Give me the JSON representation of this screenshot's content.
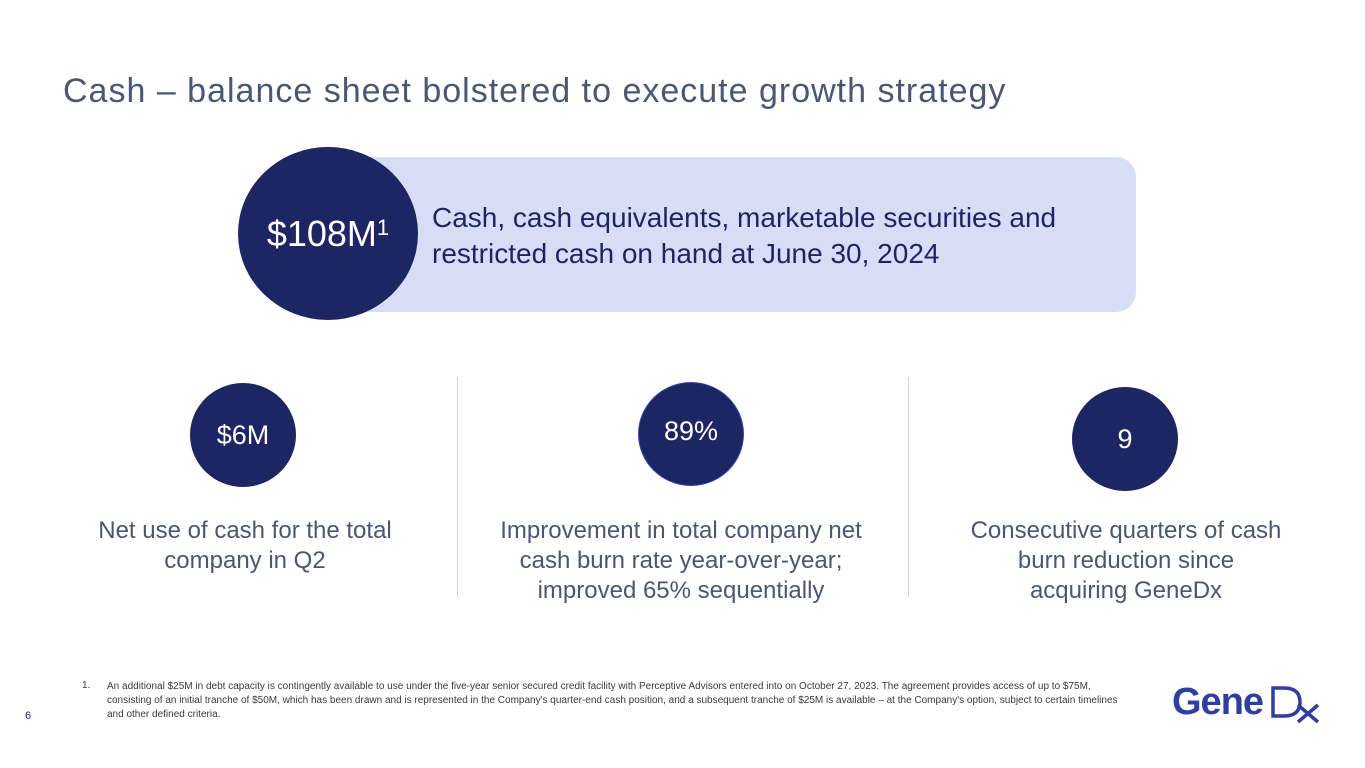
{
  "title": "Cash – balance sheet bolstered to execute growth strategy",
  "hero": {
    "value": "$108M",
    "superscript": "1",
    "description": "Cash, cash equivalents, marketable securities and restricted cash on hand at June 30, 2024"
  },
  "stats": [
    {
      "value": "$6M",
      "description": "Net use of cash for the total company in Q2"
    },
    {
      "value": "89%",
      "description": "Improvement in total company net cash burn rate year-over-year; improved 65% sequentially"
    },
    {
      "value": "9",
      "description": "Consecutive quarters of cash burn reduction since acquiring GeneDx"
    }
  ],
  "footnote": {
    "number": "1.",
    "text": "An additional $25M in debt capacity is contingently available to use under the five-year senior secured credit facility with Perceptive Advisors entered into on October 27, 2023. The agreement provides access of up to $75M, consisting of an initial tranche of $50M, which has been drawn and is represented in the Company's quarter-end cash position, and a subsequent tranche of $25M is available – at the Company's option, subject to certain timelines and other defined criteria."
  },
  "page_number": "6",
  "logo": {
    "text": "GeneDx",
    "icon": "genedx-logo"
  },
  "colors": {
    "navy": "#1e2563",
    "band": "#d7ddf5",
    "title": "#4a5773",
    "logo": "#2f3fa0"
  }
}
